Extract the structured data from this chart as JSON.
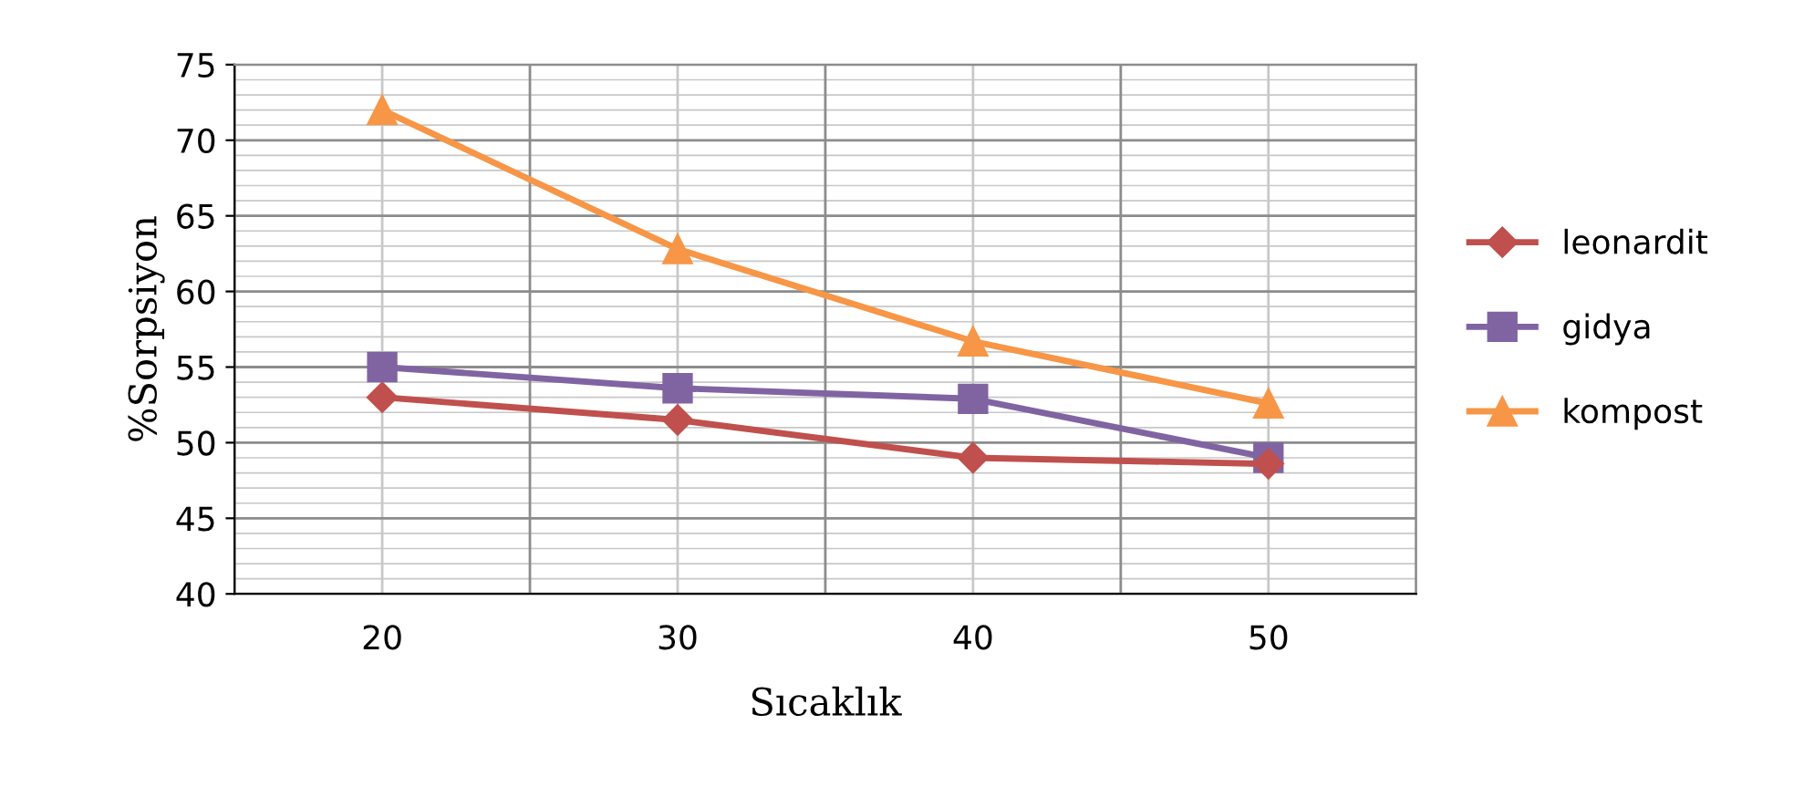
{
  "chart_data": {
    "type": "line",
    "xlabel": "Sıcaklık",
    "ylabel": "%Sorpsiyon",
    "categories": [
      "20",
      "30",
      "40",
      "50"
    ],
    "series": [
      {
        "name": "leonardit",
        "color": "#c0504d",
        "marker": "diamond",
        "values": [
          53,
          51.5,
          49,
          48.6
        ]
      },
      {
        "name": "gidya",
        "color": "#8064a2",
        "marker": "square",
        "values": [
          55,
          53.6,
          52.9,
          49
        ]
      },
      {
        "name": "kompost",
        "color": "#f79646",
        "marker": "triangle",
        "values": [
          72,
          62.8,
          56.7,
          52.6
        ]
      }
    ],
    "ylim": [
      40,
      75
    ],
    "yticks": [
      40,
      45,
      50,
      55,
      60,
      65,
      70,
      75
    ],
    "grid": true,
    "legend": "right",
    "line_style": "solid"
  }
}
